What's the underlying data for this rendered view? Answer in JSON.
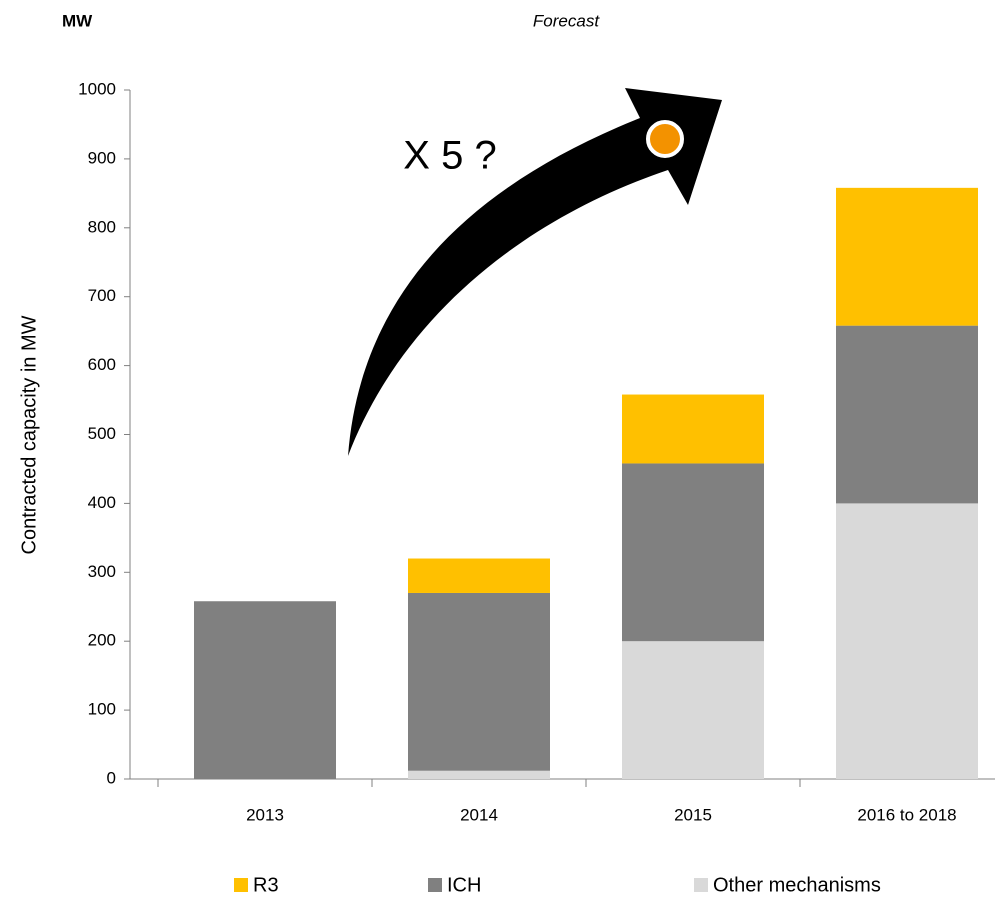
{
  "chart_data": {
    "type": "stacked_bar",
    "unit_label": "MW",
    "forecast_label": "Forecast",
    "annotation": "X 5 ?",
    "ylabel": "Contracted capacity in MW",
    "categories": [
      "2013",
      "2014",
      "2015",
      "2016 to 2018"
    ],
    "series": [
      {
        "name": "Other mechanisms",
        "color": "#d9d9d9",
        "values": [
          0,
          12,
          200,
          400
        ]
      },
      {
        "name": "ICH",
        "color": "#808080",
        "values": [
          258,
          258,
          258,
          258
        ]
      },
      {
        "name": "R3",
        "color": "#ffc000",
        "values": [
          0,
          50,
          100,
          200
        ]
      }
    ],
    "legend_order": [
      2,
      1,
      0
    ],
    "ylim": [
      0,
      1000
    ],
    "yticks": [
      0,
      100,
      200,
      300,
      400,
      500,
      600,
      700,
      800,
      900,
      1000
    ]
  }
}
